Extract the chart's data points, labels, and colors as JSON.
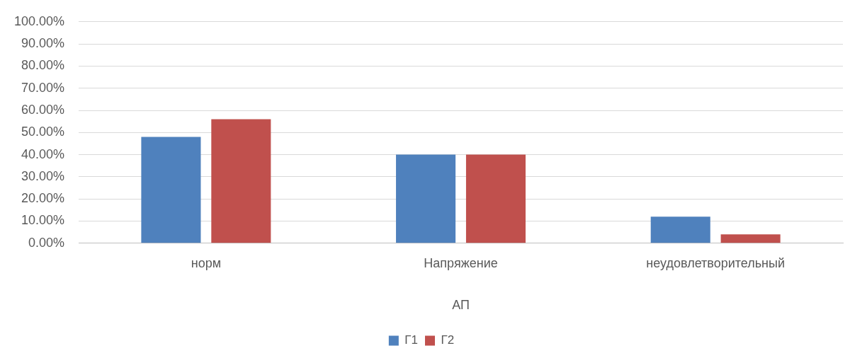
{
  "chart_data": {
    "type": "bar",
    "xlabel": "АП",
    "categories": [
      "норм",
      "Напряжение",
      "неудовлетворительный"
    ],
    "series": [
      {
        "name": "Г1",
        "color": "#4f81bd",
        "values": [
          48,
          40,
          12
        ]
      },
      {
        "name": "Г2",
        "color": "#c0504d",
        "values": [
          56,
          40,
          4
        ]
      }
    ],
    "ylim": [
      0,
      100
    ],
    "yticks": [
      {
        "value": 0,
        "label": "0.00%"
      },
      {
        "value": 10,
        "label": "10.00%"
      },
      {
        "value": 20,
        "label": "20.00%"
      },
      {
        "value": 30,
        "label": "30.00%"
      },
      {
        "value": 40,
        "label": "40.00%"
      },
      {
        "value": 50,
        "label": "50.00%"
      },
      {
        "value": 60,
        "label": "60.00%"
      },
      {
        "value": 70,
        "label": "70.00%"
      },
      {
        "value": 80,
        "label": "80.00%"
      },
      {
        "value": 90,
        "label": "90.00%"
      },
      {
        "value": 100,
        "label": "100.00%"
      }
    ],
    "grid": "y",
    "legend": "bottom"
  }
}
